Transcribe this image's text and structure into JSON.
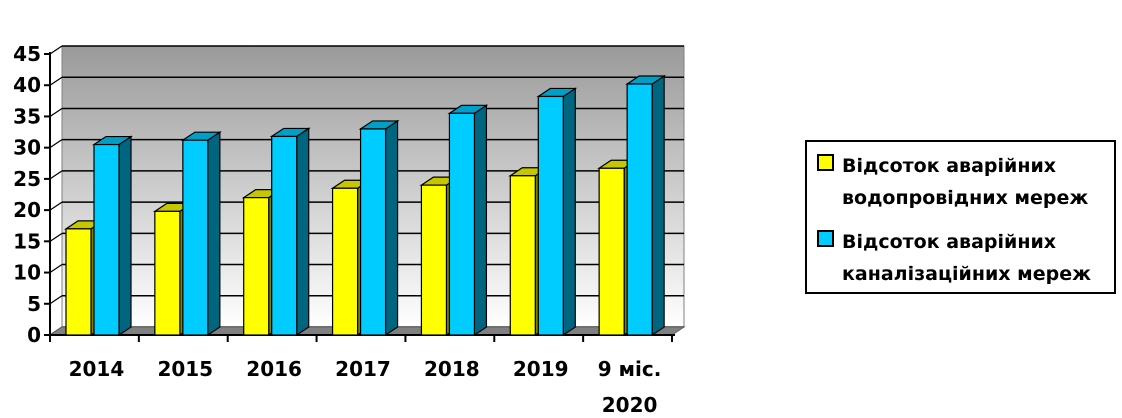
{
  "chart_data": {
    "type": "bar",
    "categories": [
      "2014",
      "2015",
      "2016",
      "2017",
      "2018",
      "2019",
      "9 міс.\n2020"
    ],
    "series": [
      {
        "name": "Відсоток аварійних водопровідних мереж",
        "values": [
          17,
          19.8,
          22,
          23.5,
          24,
          25.5,
          26.7
        ],
        "color": "#ffff00"
      },
      {
        "name": "Відсоток аварійних каналізаційних мереж",
        "values": [
          30.5,
          31.2,
          31.8,
          33,
          35.5,
          38.2,
          40.2
        ],
        "color": "#00ccff"
      }
    ],
    "ylim": [
      0,
      45
    ],
    "yticks": [
      0,
      5,
      10,
      15,
      20,
      25,
      30,
      35,
      40,
      45
    ],
    "grid": true,
    "legend_position": "right",
    "style": "3d-column"
  },
  "legend": {
    "water_line1": "Відсоток аварійних",
    "water_line2": "водопровідних мереж",
    "sewer_line1": "Відсоток аварійних",
    "sewer_line2": "каналізаційних мереж"
  }
}
